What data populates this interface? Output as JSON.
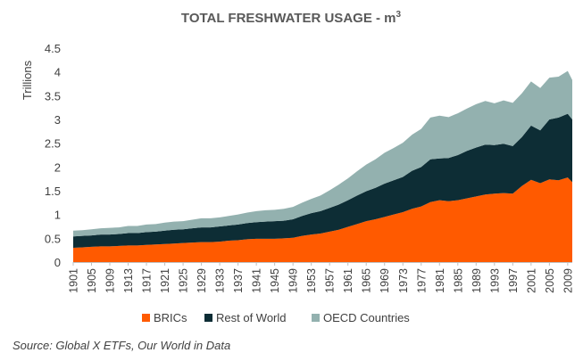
{
  "chart_data": {
    "type": "area",
    "stacked": true,
    "title": "TOTAL FRESHWATER USAGE - m",
    "title_superscript": "3",
    "y_unit_label": "Trillions",
    "ylim": [
      0,
      4.5
    ],
    "y_ticks": [
      0,
      0.5,
      1,
      1.5,
      2,
      2.5,
      3,
      3.5,
      4,
      4.5
    ],
    "y_tick_labels": [
      "0",
      "0.5",
      "1",
      "1.5",
      "2",
      "2.5",
      "3",
      "3.5",
      "4",
      "4.5"
    ],
    "x_tick_labels": [
      "1901",
      "1905",
      "1909",
      "1913",
      "1917",
      "1921",
      "1925",
      "1929",
      "1933",
      "1937",
      "1941",
      "1945",
      "1949",
      "1953",
      "1957",
      "1961",
      "1965",
      "1969",
      "1973",
      "1977",
      "1981",
      "1985",
      "1989",
      "1993",
      "1997",
      "2001",
      "2005",
      "2009"
    ],
    "grid": false,
    "legend_position": "bottom",
    "x": [
      1901,
      1903,
      1905,
      1907,
      1909,
      1911,
      1913,
      1915,
      1917,
      1919,
      1921,
      1923,
      1925,
      1927,
      1929,
      1931,
      1933,
      1935,
      1937,
      1939,
      1941,
      1943,
      1945,
      1947,
      1949,
      1951,
      1953,
      1955,
      1957,
      1959,
      1961,
      1963,
      1965,
      1967,
      1969,
      1971,
      1973,
      1975,
      1977,
      1979,
      1981,
      1983,
      1985,
      1987,
      1989,
      1991,
      1993,
      1995,
      1997,
      1999,
      2001,
      2003,
      2005,
      2007,
      2009,
      2010
    ],
    "series": [
      {
        "name": "BRICs",
        "color": "#ff5a00",
        "values": [
          0.3,
          0.31,
          0.32,
          0.33,
          0.33,
          0.34,
          0.35,
          0.35,
          0.36,
          0.37,
          0.38,
          0.39,
          0.4,
          0.41,
          0.42,
          0.42,
          0.43,
          0.45,
          0.46,
          0.48,
          0.49,
          0.49,
          0.49,
          0.5,
          0.51,
          0.55,
          0.58,
          0.6,
          0.64,
          0.68,
          0.74,
          0.8,
          0.86,
          0.9,
          0.95,
          1.0,
          1.05,
          1.12,
          1.17,
          1.26,
          1.3,
          1.28,
          1.3,
          1.34,
          1.38,
          1.42,
          1.44,
          1.45,
          1.44,
          1.6,
          1.73,
          1.66,
          1.74,
          1.72,
          1.78,
          1.68
        ]
      },
      {
        "name": "Rest of World",
        "color": "#0d2d35",
        "values": [
          0.24,
          0.24,
          0.24,
          0.25,
          0.25,
          0.25,
          0.26,
          0.26,
          0.27,
          0.27,
          0.28,
          0.29,
          0.29,
          0.3,
          0.31,
          0.31,
          0.32,
          0.32,
          0.33,
          0.34,
          0.35,
          0.36,
          0.37,
          0.37,
          0.39,
          0.42,
          0.45,
          0.47,
          0.5,
          0.53,
          0.56,
          0.6,
          0.63,
          0.66,
          0.7,
          0.72,
          0.74,
          0.8,
          0.83,
          0.9,
          0.88,
          0.91,
          0.95,
          1.0,
          1.03,
          1.05,
          1.02,
          1.04,
          1.0,
          1.03,
          1.14,
          1.11,
          1.26,
          1.32,
          1.34,
          1.32
        ]
      },
      {
        "name": "OECD Countries",
        "color": "#93b1af",
        "values": [
          0.12,
          0.12,
          0.13,
          0.13,
          0.14,
          0.14,
          0.15,
          0.15,
          0.16,
          0.16,
          0.17,
          0.17,
          0.17,
          0.18,
          0.19,
          0.19,
          0.19,
          0.2,
          0.21,
          0.22,
          0.23,
          0.24,
          0.24,
          0.25,
          0.26,
          0.28,
          0.3,
          0.33,
          0.37,
          0.42,
          0.46,
          0.51,
          0.56,
          0.6,
          0.65,
          0.68,
          0.72,
          0.76,
          0.8,
          0.88,
          0.9,
          0.86,
          0.88,
          0.89,
          0.91,
          0.92,
          0.88,
          0.91,
          0.91,
          0.92,
          0.93,
          0.89,
          0.88,
          0.86,
          0.9,
          0.83
        ]
      }
    ]
  },
  "source": "Source: Global X ETFs, Our World in Data"
}
